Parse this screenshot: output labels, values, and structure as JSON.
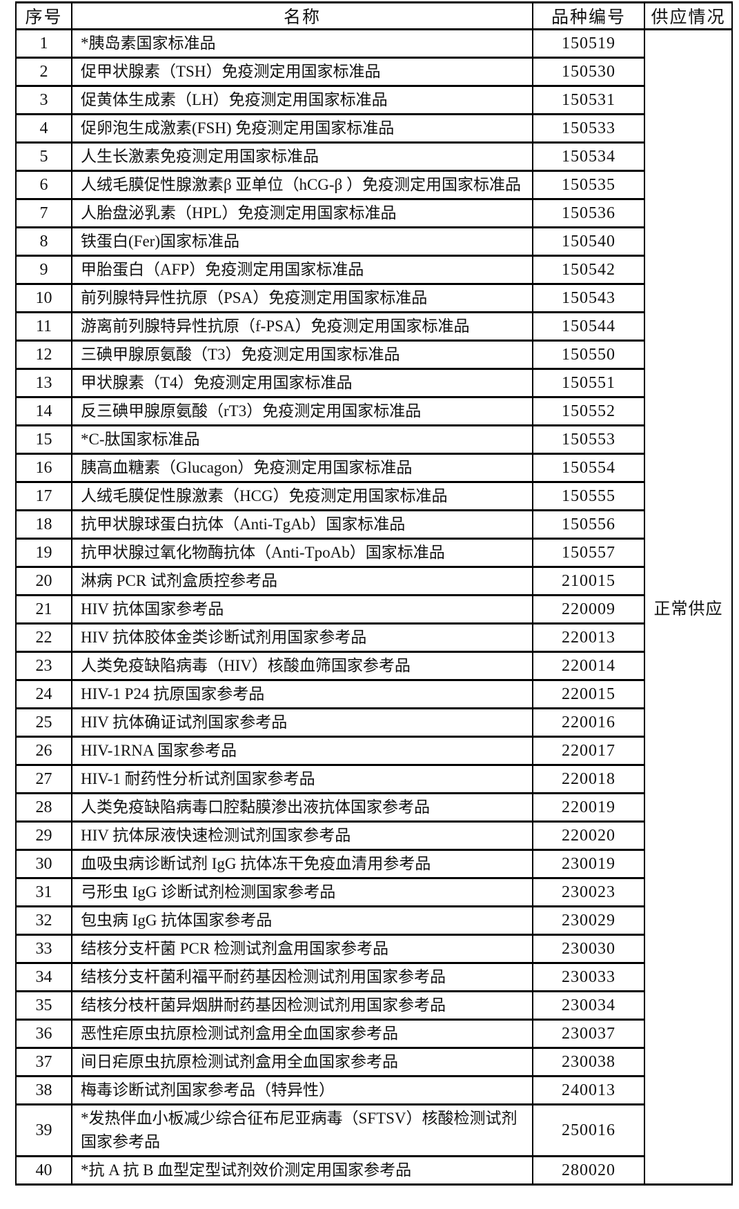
{
  "table": {
    "headers": [
      "序号",
      "名称",
      "品种编号",
      "供应情况"
    ],
    "supply_status": "正常供应",
    "rows": [
      {
        "no": "1",
        "name": "*胰岛素国家标准品",
        "code": "150519"
      },
      {
        "no": "2",
        "name": "促甲状腺素（TSH）免疫测定用国家标准品",
        "code": "150530"
      },
      {
        "no": "3",
        "name": "促黄体生成素（LH）免疫测定用国家标准品",
        "code": "150531"
      },
      {
        "no": "4",
        "name": "促卵泡生成激素(FSH) 免疫测定用国家标准品",
        "code": "150533"
      },
      {
        "no": "5",
        "name": "人生长激素免疫测定用国家标准品",
        "code": "150534"
      },
      {
        "no": "6",
        "name": "人绒毛膜促性腺激素β 亚单位（hCG-β ）免疫测定用国家标准品",
        "code": "150535"
      },
      {
        "no": "7",
        "name": "人胎盘泌乳素（HPL）免疫测定用国家标准品",
        "code": "150536"
      },
      {
        "no": "8",
        "name": "铁蛋白(Fer)国家标准品",
        "code": "150540"
      },
      {
        "no": "9",
        "name": "甲胎蛋白（AFP）免疫测定用国家标准品",
        "code": "150542"
      },
      {
        "no": "10",
        "name": "前列腺特异性抗原（PSA）免疫测定用国家标准品",
        "code": "150543"
      },
      {
        "no": "11",
        "name": "游离前列腺特异性抗原（f-PSA）免疫测定用国家标准品",
        "code": "150544"
      },
      {
        "no": "12",
        "name": "三碘甲腺原氨酸（T3）免疫测定用国家标准品",
        "code": "150550"
      },
      {
        "no": "13",
        "name": "甲状腺素（T4）免疫测定用国家标准品",
        "code": "150551"
      },
      {
        "no": "14",
        "name": "反三碘甲腺原氨酸（rT3）免疫测定用国家标准品",
        "code": "150552"
      },
      {
        "no": "15",
        "name": "*C-肽国家标准品",
        "code": "150553"
      },
      {
        "no": "16",
        "name": "胰高血糖素（Glucagon）免疫测定用国家标准品",
        "code": "150554"
      },
      {
        "no": "17",
        "name": "人绒毛膜促性腺激素（HCG）免疫测定用国家标准品",
        "code": "150555"
      },
      {
        "no": "18",
        "name": "抗甲状腺球蛋白抗体（Anti-TgAb）国家标准品",
        "code": "150556"
      },
      {
        "no": "19",
        "name": "抗甲状腺过氧化物酶抗体（Anti-TpoAb）国家标准品",
        "code": "150557"
      },
      {
        "no": "20",
        "name": "淋病 PCR 试剂盒质控参考品",
        "code": "210015"
      },
      {
        "no": "21",
        "name": "HIV 抗体国家参考品",
        "code": "220009"
      },
      {
        "no": "22",
        "name": "HIV 抗体胶体金类诊断试剂用国家参考品",
        "code": "220013"
      },
      {
        "no": "23",
        "name": "人类免疫缺陷病毒（HIV）核酸血筛国家参考品",
        "code": "220014"
      },
      {
        "no": "24",
        "name": "HIV-1 P24 抗原国家参考品",
        "code": "220015"
      },
      {
        "no": "25",
        "name": "HIV 抗体确证试剂国家参考品",
        "code": "220016"
      },
      {
        "no": "26",
        "name": "HIV-1RNA 国家参考品",
        "code": "220017"
      },
      {
        "no": "27",
        "name": "HIV-1 耐药性分析试剂国家参考品",
        "code": "220018"
      },
      {
        "no": "28",
        "name": "人类免疫缺陷病毒口腔黏膜渗出液抗体国家参考品",
        "code": "220019"
      },
      {
        "no": "29",
        "name": "HIV 抗体尿液快速检测试剂国家参考品",
        "code": "220020"
      },
      {
        "no": "30",
        "name": "血吸虫病诊断试剂 IgG 抗体冻干免疫血清用参考品",
        "code": "230019"
      },
      {
        "no": "31",
        "name": "弓形虫 IgG 诊断试剂检测国家参考品",
        "code": "230023"
      },
      {
        "no": "32",
        "name": "包虫病 IgG 抗体国家参考品",
        "code": "230029"
      },
      {
        "no": "33",
        "name": "结核分支杆菌 PCR 检测试剂盒用国家参考品",
        "code": "230030"
      },
      {
        "no": "34",
        "name": "结核分支杆菌利福平耐药基因检测试剂用国家参考品",
        "code": "230033"
      },
      {
        "no": "35",
        "name": "结核分枝杆菌异烟肼耐药基因检测试剂用国家参考品",
        "code": "230034"
      },
      {
        "no": "36",
        "name": "恶性疟原虫抗原检测试剂盒用全血国家参考品",
        "code": "230037"
      },
      {
        "no": "37",
        "name": "间日疟原虫抗原检测试剂盒用全血国家参考品",
        "code": "230038"
      },
      {
        "no": "38",
        "name": "梅毒诊断试剂国家参考品（特异性）",
        "code": "240013"
      },
      {
        "no": "39",
        "name": "*发热伴血小板减少综合征布尼亚病毒（SFTSV）核酸检测试剂国家参考品",
        "code": "250016"
      },
      {
        "no": "40",
        "name": "*抗 A 抗 B 血型定型试剂效价测定用国家参考品",
        "code": "280020"
      }
    ]
  }
}
